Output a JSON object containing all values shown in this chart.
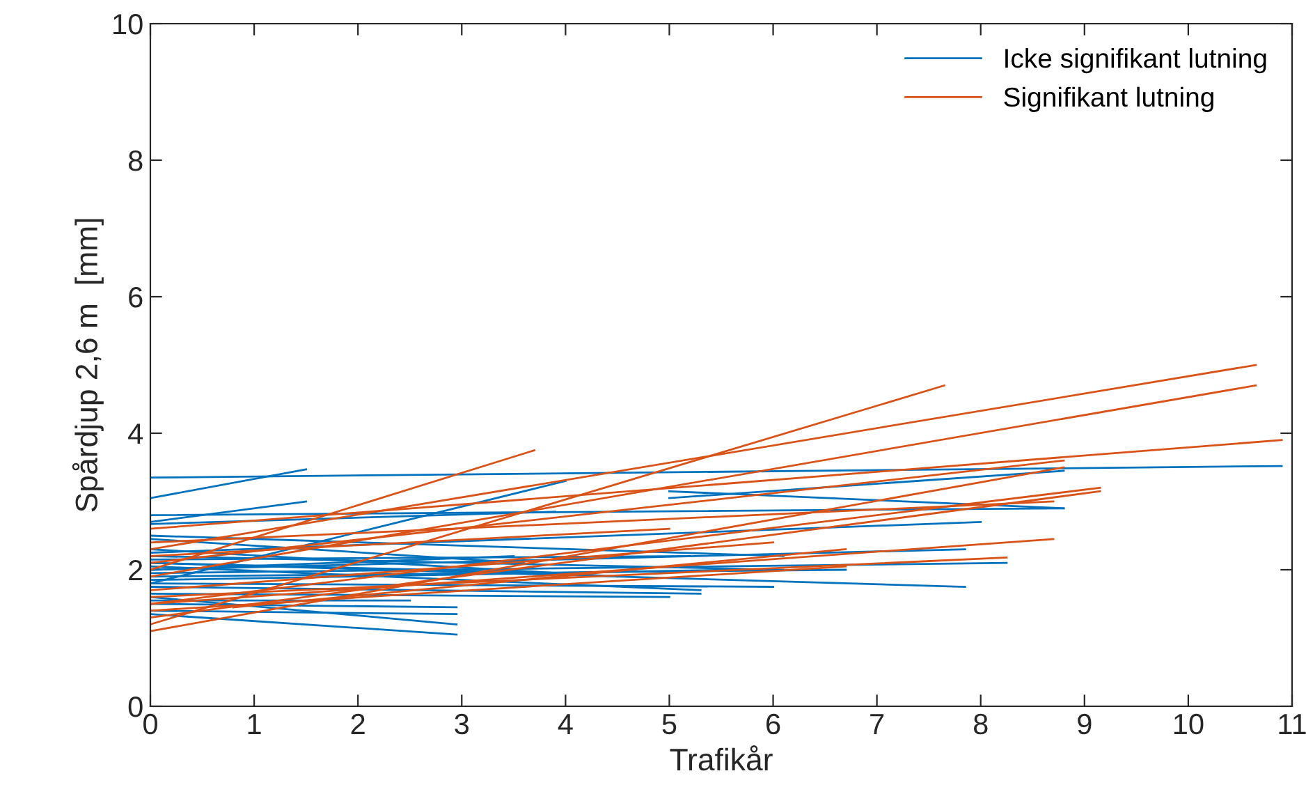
{
  "chart_data": {
    "type": "line",
    "xlabel": "Trafikår",
    "ylabel": "Spårdjup 2,6 m  [mm]",
    "xlim": [
      0,
      11
    ],
    "xticks": [
      0,
      1,
      2,
      3,
      4,
      5,
      6,
      7,
      8,
      9,
      10,
      11
    ],
    "ylim": [
      0,
      10
    ],
    "yticks": [
      0,
      2,
      4,
      6,
      8,
      10
    ],
    "legend": "top right",
    "series": [
      {
        "name": "Icke signifikant lutning",
        "color": "#0072bd",
        "x": [
          0,
          10.9
        ],
        "values": [
          3.35,
          3.52
        ]
      },
      {
        "color": "#0072bd",
        "x": [
          0,
          1.5
        ],
        "values": [
          3.05,
          3.47
        ]
      },
      {
        "color": "#0072bd",
        "x": [
          0,
          1.5
        ],
        "values": [
          2.7,
          3.0
        ]
      },
      {
        "color": "#0072bd",
        "x": [
          0,
          8.8
        ],
        "values": [
          2.8,
          2.9
        ]
      },
      {
        "color": "#0072bd",
        "x": [
          0,
          3.9
        ],
        "values": [
          2.67,
          2.85
        ]
      },
      {
        "color": "#0072bd",
        "x": [
          0,
          4.0
        ],
        "values": [
          1.8,
          3.3
        ]
      },
      {
        "color": "#0072bd",
        "x": [
          5.0,
          8.8
        ],
        "values": [
          3.05,
          3.45
        ]
      },
      {
        "color": "#0072bd",
        "x": [
          5.0,
          8.8
        ],
        "values": [
          3.15,
          2.9
        ]
      },
      {
        "color": "#0072bd",
        "x": [
          0,
          8.0
        ],
        "values": [
          2.25,
          2.7
        ]
      },
      {
        "color": "#0072bd",
        "x": [
          0,
          6.1
        ],
        "values": [
          2.5,
          2.2
        ]
      },
      {
        "color": "#0072bd",
        "x": [
          0,
          6.1
        ],
        "values": [
          2.2,
          2.0
        ]
      },
      {
        "color": "#0072bd",
        "x": [
          0,
          7.85
        ],
        "values": [
          2.0,
          2.3
        ]
      },
      {
        "color": "#0072bd",
        "x": [
          0,
          7.85
        ],
        "values": [
          2.1,
          1.75
        ]
      },
      {
        "color": "#0072bd",
        "x": [
          0,
          8.25
        ],
        "values": [
          1.95,
          2.1
        ]
      },
      {
        "color": "#0072bd",
        "x": [
          0,
          5.2
        ],
        "values": [
          2.15,
          2.2
        ]
      },
      {
        "color": "#0072bd",
        "x": [
          0,
          5.6
        ],
        "values": [
          1.85,
          2.0
        ]
      },
      {
        "color": "#0072bd",
        "x": [
          0,
          5.3
        ],
        "values": [
          2.05,
          1.7
        ]
      },
      {
        "color": "#0072bd",
        "x": [
          0,
          5.3
        ],
        "values": [
          1.75,
          1.65
        ]
      },
      {
        "color": "#0072bd",
        "x": [
          0,
          5.0
        ],
        "values": [
          1.65,
          1.6
        ]
      },
      {
        "color": "#0072bd",
        "x": [
          0,
          4.5
        ],
        "values": [
          2.3,
          1.9
        ]
      },
      {
        "color": "#0072bd",
        "x": [
          0,
          6.7
        ],
        "values": [
          1.9,
          2.0
        ]
      },
      {
        "color": "#0072bd",
        "x": [
          0,
          2.95
        ],
        "values": [
          1.5,
          1.45
        ]
      },
      {
        "color": "#0072bd",
        "x": [
          0,
          2.95
        ],
        "values": [
          1.4,
          1.35
        ]
      },
      {
        "color": "#0072bd",
        "x": [
          0,
          2.95
        ],
        "values": [
          1.35,
          1.05
        ]
      },
      {
        "color": "#0072bd",
        "x": [
          0,
          2.95
        ],
        "values": [
          1.6,
          1.2
        ]
      },
      {
        "color": "#0072bd",
        "x": [
          0,
          3.5
        ],
        "values": [
          2.0,
          2.2
        ]
      },
      {
        "color": "#0072bd",
        "x": [
          0,
          6.0
        ],
        "values": [
          1.8,
          1.75
        ]
      },
      {
        "color": "#0072bd",
        "x": [
          0,
          4.0
        ],
        "values": [
          2.1,
          1.95
        ]
      },
      {
        "color": "#0072bd",
        "x": [
          0,
          2.5
        ],
        "values": [
          1.55,
          1.55
        ]
      },
      {
        "color": "#0072bd",
        "x": [
          0,
          3.6
        ],
        "values": [
          2.45,
          2.1
        ]
      },
      {
        "name": "Signifikant lutning",
        "color": "#d95319",
        "x": [
          0,
          3.7
        ],
        "values": [
          2.0,
          3.75
        ]
      },
      {
        "color": "#d95319",
        "x": [
          0,
          7.65
        ],
        "values": [
          1.2,
          4.7
        ]
      },
      {
        "color": "#d95319",
        "x": [
          0,
          10.65
        ],
        "values": [
          2.3,
          5.0
        ]
      },
      {
        "color": "#d95319",
        "x": [
          0,
          10.65
        ],
        "values": [
          1.9,
          4.7
        ]
      },
      {
        "color": "#d95319",
        "x": [
          0,
          10.9
        ],
        "values": [
          2.6,
          3.9
        ]
      },
      {
        "color": "#d95319",
        "x": [
          0,
          8.8
        ],
        "values": [
          1.1,
          3.5
        ]
      },
      {
        "color": "#d95319",
        "x": [
          0,
          8.8
        ],
        "values": [
          2.1,
          3.6
        ]
      },
      {
        "color": "#d95319",
        "x": [
          0,
          9.15
        ],
        "values": [
          1.5,
          3.2
        ]
      },
      {
        "color": "#d95319",
        "x": [
          0,
          9.15
        ],
        "values": [
          1.3,
          3.15
        ]
      },
      {
        "color": "#d95319",
        "x": [
          0,
          8.7
        ],
        "values": [
          2.4,
          3.0
        ]
      },
      {
        "color": "#d95319",
        "x": [
          0,
          8.7
        ],
        "values": [
          1.5,
          2.45
        ]
      },
      {
        "color": "#d95319",
        "x": [
          0,
          8.25
        ],
        "values": [
          1.6,
          2.18
        ]
      },
      {
        "color": "#d95319",
        "x": [
          0,
          6.7
        ],
        "values": [
          1.4,
          2.05
        ]
      },
      {
        "color": "#d95319",
        "x": [
          0.8,
          6.7
        ],
        "values": [
          1.45,
          2.3
        ]
      },
      {
        "color": "#d95319",
        "x": [
          0,
          5.0
        ],
        "values": [
          2.2,
          2.6
        ]
      },
      {
        "color": "#d95319",
        "x": [
          0,
          6.0
        ],
        "values": [
          1.7,
          2.4
        ]
      }
    ]
  }
}
